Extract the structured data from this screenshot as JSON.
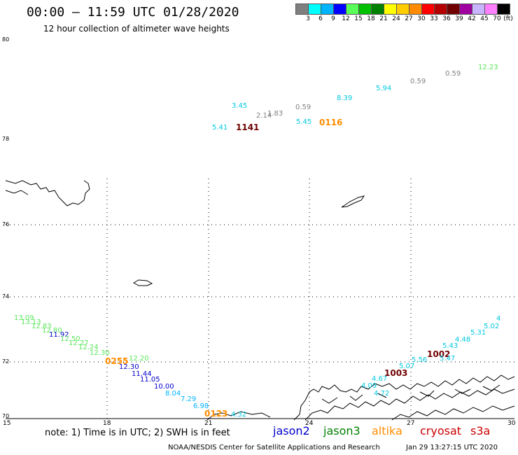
{
  "header": {
    "title": "00:00 – 11:59 UTC 01/28/2020",
    "subtitle": "12 hour collection of altimeter wave heights"
  },
  "scale": {
    "unit": "(ft)",
    "colors": [
      "#7f7f7f",
      "#00ffff",
      "#00b4ff",
      "#0000ff",
      "#59ff59",
      "#00c000",
      "#008000",
      "#ffff00",
      "#ffcc00",
      "#ff8c00",
      "#ff0000",
      "#b40000",
      "#700000",
      "#a000a0",
      "#c8b4ff",
      "#ff80ff",
      "#000000"
    ],
    "labels": [
      "3",
      "6",
      "9",
      "12",
      "15",
      "18",
      "21",
      "24",
      "27",
      "30",
      "33",
      "36",
      "39",
      "42",
      "45",
      "70"
    ]
  },
  "axes": {
    "lat_labels": [
      "80",
      "78",
      "76",
      "74",
      "72",
      "70"
    ],
    "lon_labels": [
      "15",
      "18",
      "21",
      "24",
      "27",
      "30"
    ]
  },
  "footer": {
    "note": "note:  1) Time is in UTC;  2) SWH is in feet",
    "satellites": [
      {
        "name": "jason2",
        "color": "#0000cc"
      },
      {
        "name": "jason3",
        "color": "#008000"
      },
      {
        "name": "altika",
        "color": "#ff8c00"
      },
      {
        "name": "cryosat",
        "color": "#cc0000"
      },
      {
        "name": "s3a",
        "color": "#cc0000"
      }
    ],
    "credit": "NOAA/NESDIS Center for Satellite Applications and Research",
    "timestamp": "Jan 29 13:27:15 UTC 2020"
  },
  "wave_labels": [
    {
      "text": "3.45",
      "color": "#00c8e0"
    },
    {
      "text": "2.14",
      "color": "#808080"
    },
    {
      "text": "1.83",
      "color": "#808080"
    },
    {
      "text": "5.41",
      "color": "#00c8e0"
    },
    {
      "text": "1141",
      "color": "#700000",
      "big": true
    },
    {
      "text": "0.59",
      "color": "#808080"
    },
    {
      "text": "5.45",
      "color": "#00c8e0"
    },
    {
      "text": "0116",
      "color": "#ff8c00",
      "big": true
    },
    {
      "text": "8.39",
      "color": "#00c8e0"
    },
    {
      "text": "5.94",
      "color": "#00c8e0"
    },
    {
      "text": "0.59",
      "color": "#808080"
    },
    {
      "text": "0.59",
      "color": "#808080"
    },
    {
      "text": "12.23",
      "color": "#59e659"
    },
    {
      "text": "13.09",
      "color": "#59e659"
    },
    {
      "text": "13.13",
      "color": "#59e659"
    },
    {
      "text": "12.83",
      "color": "#59e659"
    },
    {
      "text": "12.80",
      "color": "#59e659"
    },
    {
      "text": "11.92",
      "color": "#0000cc"
    },
    {
      "text": "12.50",
      "color": "#59e659"
    },
    {
      "text": "12.27",
      "color": "#59e659"
    },
    {
      "text": "12.24",
      "color": "#59e659"
    },
    {
      "text": "12.30",
      "color": "#59e659"
    },
    {
      "text": "0255",
      "color": "#ff8c00",
      "big": true
    },
    {
      "text": "12.20",
      "color": "#59e659"
    },
    {
      "text": "12.30",
      "color": "#0000cc"
    },
    {
      "text": "11.44",
      "color": "#0000cc"
    },
    {
      "text": "11.05",
      "color": "#0000cc"
    },
    {
      "text": "10.00",
      "color": "#0000cc"
    },
    {
      "text": "8.04",
      "color": "#00b4ff"
    },
    {
      "text": "7.29",
      "color": "#00b4ff"
    },
    {
      "text": "6.98",
      "color": "#00b4ff"
    },
    {
      "text": "0123",
      "color": "#ff8c00",
      "big": true
    },
    {
      "text": "4.32",
      "color": "#00c8e0"
    },
    {
      "text": "4.09",
      "color": "#00c8e0"
    },
    {
      "text": "4.67",
      "color": "#00c8e0"
    },
    {
      "text": "1003",
      "color": "#700000",
      "big": true
    },
    {
      "text": "4.72",
      "color": "#00c8e0"
    },
    {
      "text": "5.07",
      "color": "#00c8e0"
    },
    {
      "text": "5.56",
      "color": "#00c8e0"
    },
    {
      "text": "1002",
      "color": "#700000",
      "big": true
    },
    {
      "text": "5.47",
      "color": "#00c8e0"
    },
    {
      "text": "5.43",
      "color": "#00c8e0"
    },
    {
      "text": "4.48",
      "color": "#00c8e0"
    },
    {
      "text": "5.31",
      "color": "#00c8e0"
    },
    {
      "text": "5.02",
      "color": "#00c8e0"
    },
    {
      "text": "4",
      "color": "#00c8e0"
    }
  ]
}
